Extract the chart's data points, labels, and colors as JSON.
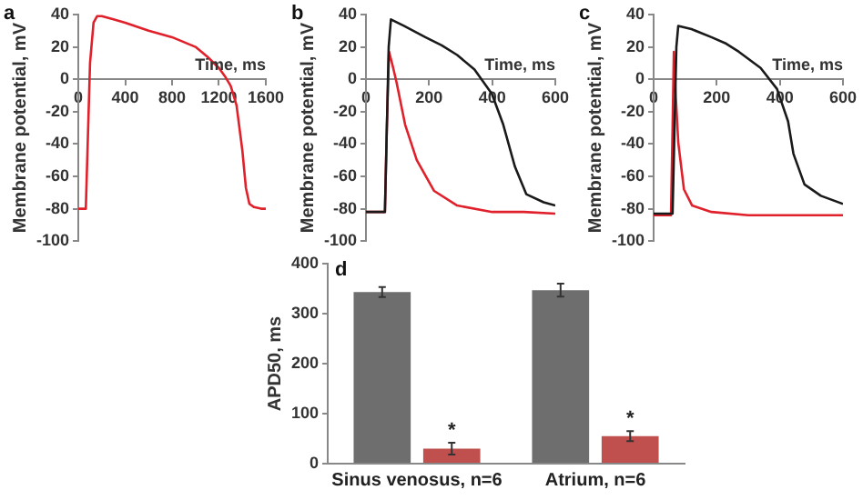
{
  "chart_data": [
    {
      "type": "line",
      "title": "a",
      "xlabel": "Time, ms",
      "ylabel": "Membrane potential, mV",
      "xlim": [
        0,
        1600
      ],
      "xticks": [
        0,
        400,
        800,
        1200,
        1600
      ],
      "ylim": [
        -100,
        40
      ],
      "yticks": [
        -100,
        -80,
        -60,
        -40,
        -20,
        0,
        20,
        40
      ],
      "grid": false,
      "marker": "none",
      "legend": false,
      "series": [
        {
          "color": "#e0202a",
          "x": [
            0,
            64,
            80,
            100,
            130,
            160,
            200,
            300,
            400,
            600,
            800,
            1000,
            1100,
            1200,
            1250,
            1300,
            1350,
            1400,
            1430,
            1460,
            1500,
            1560,
            1600
          ],
          "values": [
            -80,
            -80,
            -40,
            10,
            35,
            39,
            39,
            37,
            35,
            30,
            26,
            20,
            14,
            7,
            2,
            -4,
            -16,
            -44,
            -67,
            -77,
            -79,
            -80,
            -80
          ]
        }
      ]
    },
    {
      "type": "line",
      "title": "b",
      "xlabel": "Time, ms",
      "ylabel": "Membrane potential, mV",
      "xlim": [
        0,
        600
      ],
      "xticks": [
        0,
        200,
        400,
        600
      ],
      "ylim": [
        -100,
        40
      ],
      "yticks": [
        -100,
        -80,
        -60,
        -40,
        -20,
        0,
        20,
        40
      ],
      "grid": false,
      "marker": "none",
      "legend": false,
      "series": [
        {
          "color": "#1a1a1a",
          "x": [
            0,
            60,
            65,
            72,
            79,
            120,
            188,
            240,
            289,
            344,
            399,
            435,
            472,
            508,
            563,
            600
          ],
          "values": [
            -82,
            -82,
            -40,
            20,
            37,
            33,
            26,
            21,
            15,
            6,
            -9,
            -28,
            -54,
            -71,
            -76,
            -78
          ]
        },
        {
          "color": "#e0202a",
          "x": [
            0,
            60,
            66,
            73,
            85,
            97,
            124,
            161,
            216,
            289,
            400,
            500,
            600
          ],
          "values": [
            -82,
            -82,
            -30,
            17,
            8,
            -2,
            -28,
            -50,
            -69,
            -78,
            -82,
            -82,
            -83
          ]
        }
      ]
    },
    {
      "type": "line",
      "title": "c",
      "xlabel": "Time, ms",
      "ylabel": "Membrane potential, mV",
      "xlim": [
        0,
        600
      ],
      "xticks": [
        0,
        200,
        400,
        600
      ],
      "ylim": [
        -100,
        40
      ],
      "yticks": [
        -100,
        -80,
        -60,
        -40,
        -20,
        0,
        20,
        40
      ],
      "grid": false,
      "marker": "none",
      "legend": false,
      "series": [
        {
          "color": "#1a1a1a",
          "x": [
            0,
            60,
            65,
            72,
            78,
            120,
            183,
            230,
            270,
            339,
            391,
            426,
            443,
            478,
            530,
            600
          ],
          "values": [
            -83,
            -83,
            -40,
            20,
            33,
            31,
            26,
            22,
            17,
            7,
            -6,
            -26,
            -46,
            -65,
            -72,
            -77
          ]
        },
        {
          "color": "#e0202a",
          "x": [
            0,
            55,
            60,
            64,
            70,
            78,
            96,
            122,
            183,
            300,
            600
          ],
          "values": [
            -84,
            -84,
            -30,
            17,
            -10,
            -39,
            -68,
            -78,
            -82,
            -84,
            -84
          ]
        }
      ]
    },
    {
      "type": "bar",
      "title": "d",
      "ylabel": "APD50, ms",
      "categories": [
        "Sinus venosus, n=6",
        "Atrium, n=6"
      ],
      "ylim": [
        0,
        400
      ],
      "yticks": [
        0,
        100,
        200,
        300,
        400
      ],
      "grid": false,
      "legend": false,
      "series": [
        {
          "color": "#6e6e6e",
          "values": [
            343,
            347
          ],
          "errors": [
            10,
            13
          ]
        },
        {
          "color": "#c0504d",
          "values": [
            30,
            55
          ],
          "errors": [
            12,
            10
          ]
        }
      ],
      "annotations": [
        "*",
        "*"
      ]
    }
  ]
}
